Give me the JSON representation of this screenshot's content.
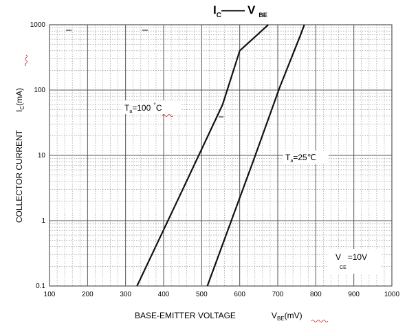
{
  "chart_data": {
    "type": "line",
    "title": {
      "left_symbol": "I",
      "left_sub": "C",
      "right_symbol": "V",
      "right_sub": "BE"
    },
    "xlabel": {
      "text": "BASE-EMITTER VOLTAGE",
      "symbol": "V",
      "sub": "BE",
      "unit": "(mV)"
    },
    "ylabel": {
      "text": "COLLECTOR CURRENT",
      "symbol": "I",
      "sub": "C",
      "unit": "(mA)"
    },
    "x_scale": "linear",
    "y_scale": "log",
    "xlim": [
      100,
      1000
    ],
    "ylim": [
      0.1,
      1000
    ],
    "x_ticks": [
      "100",
      "200",
      "300",
      "400",
      "500",
      "600",
      "700",
      "800",
      "900",
      "1000"
    ],
    "y_ticks": [
      "0.1",
      "1",
      "10",
      "100",
      "1000"
    ],
    "grid": true,
    "series": [
      {
        "name": "100 °C",
        "label": {
          "symbol": "T",
          "sub": "a",
          "value": "=100",
          "unit": "C",
          "deg": "°"
        },
        "points": [
          [
            330,
            0.1
          ],
          [
            450,
            3
          ],
          [
            555,
            60
          ],
          [
            600,
            400
          ],
          [
            675,
            1000
          ]
        ]
      },
      {
        "name": "25℃",
        "label": {
          "symbol": "T",
          "sub": "a",
          "value": "=25℃"
        },
        "points": [
          [
            515,
            0.1
          ],
          [
            635,
            8
          ],
          [
            705,
            110
          ],
          [
            760,
            700
          ],
          [
            770,
            1000
          ]
        ]
      }
    ],
    "annotation": {
      "symbol": "V",
      "sub": "CE",
      "value": "=10V"
    }
  }
}
